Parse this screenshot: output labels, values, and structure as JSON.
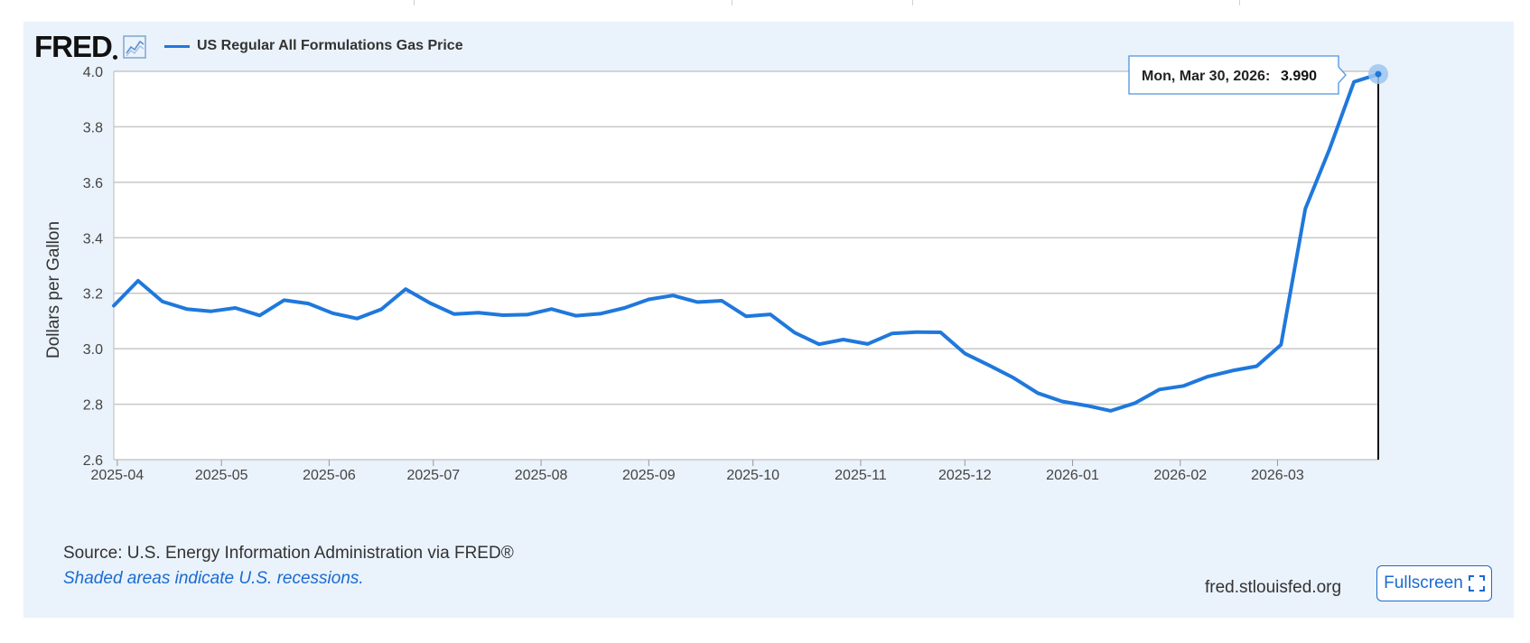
{
  "legend": {
    "series_label": "US Regular All Formulations Gas Price",
    "color": "#1f78dc"
  },
  "logo": {
    "text": "FRED",
    "icon": "line-graph-icon"
  },
  "tooltip": {
    "date": "Mon, Mar 30, 2026:",
    "value": "3.990"
  },
  "footer": {
    "source": "Source: U.S. Energy Information Administration via FRED®",
    "recession_note": "Shaded areas indicate U.S. recessions.",
    "site": "fred.stlouisfed.org",
    "fullscreen_label": "Fullscreen",
    "fullscreen_icon": "expand-icon"
  },
  "colors": {
    "panel_bg": "#eaf2fb",
    "series": "#1f78dc",
    "accent_link": "#1a6bd0"
  },
  "chart_data": {
    "type": "line",
    "title": "",
    "xlabel": "",
    "ylabel": "Dollars per Gallon",
    "ylim": [
      2.6,
      4.0
    ],
    "xlim": [
      "2025-03-31",
      "2026-03-30"
    ],
    "y_ticks": [
      "2.6",
      "2.8",
      "3.0",
      "3.2",
      "3.4",
      "3.6",
      "3.8",
      "4.0"
    ],
    "x_ticks": [
      {
        "label": "2025-04",
        "date": "2025-04-01"
      },
      {
        "label": "2025-05",
        "date": "2025-05-01"
      },
      {
        "label": "2025-06",
        "date": "2025-06-01"
      },
      {
        "label": "2025-07",
        "date": "2025-07-01"
      },
      {
        "label": "2025-08",
        "date": "2025-08-01"
      },
      {
        "label": "2025-09",
        "date": "2025-09-01"
      },
      {
        "label": "2025-10",
        "date": "2025-10-01"
      },
      {
        "label": "2025-11",
        "date": "2025-11-01"
      },
      {
        "label": "2025-12",
        "date": "2025-12-01"
      },
      {
        "label": "2026-01",
        "date": "2026-01-01"
      },
      {
        "label": "2026-02",
        "date": "2026-02-01"
      },
      {
        "label": "2026-03",
        "date": "2026-03-01"
      }
    ],
    "grid": true,
    "series": [
      {
        "name": "US Regular All Formulations Gas Price",
        "x": [
          "2025-03-31",
          "2025-04-07",
          "2025-04-14",
          "2025-04-21",
          "2025-04-28",
          "2025-05-05",
          "2025-05-12",
          "2025-05-19",
          "2025-05-26",
          "2025-06-02",
          "2025-06-09",
          "2025-06-16",
          "2025-06-23",
          "2025-06-30",
          "2025-07-07",
          "2025-07-14",
          "2025-07-21",
          "2025-07-28",
          "2025-08-04",
          "2025-08-11",
          "2025-08-18",
          "2025-08-25",
          "2025-09-01",
          "2025-09-08",
          "2025-09-15",
          "2025-09-22",
          "2025-09-29",
          "2025-10-06",
          "2025-10-13",
          "2025-10-20",
          "2025-10-27",
          "2025-11-03",
          "2025-11-10",
          "2025-11-17",
          "2025-11-24",
          "2025-12-01",
          "2025-12-08",
          "2025-12-15",
          "2025-12-22",
          "2025-12-29",
          "2026-01-05",
          "2026-01-12",
          "2026-01-19",
          "2026-01-26",
          "2026-02-02",
          "2026-02-09",
          "2026-02-16",
          "2026-02-23",
          "2026-03-02",
          "2026-03-09",
          "2026-03-16",
          "2026-03-23",
          "2026-03-30"
        ],
        "y": [
          3.155,
          3.245,
          3.17,
          3.143,
          3.135,
          3.147,
          3.12,
          3.175,
          3.163,
          3.128,
          3.109,
          3.142,
          3.215,
          3.165,
          3.125,
          3.13,
          3.121,
          3.123,
          3.143,
          3.119,
          3.126,
          3.147,
          3.178,
          3.192,
          3.168,
          3.173,
          3.117,
          3.124,
          3.058,
          3.016,
          3.033,
          3.017,
          3.055,
          3.06,
          3.059,
          2.983,
          2.94,
          2.895,
          2.84,
          2.81,
          2.795,
          2.776,
          2.804,
          2.853,
          2.866,
          2.9,
          2.921,
          2.937,
          3.014,
          3.504,
          3.721,
          3.962,
          3.99
        ]
      }
    ]
  }
}
